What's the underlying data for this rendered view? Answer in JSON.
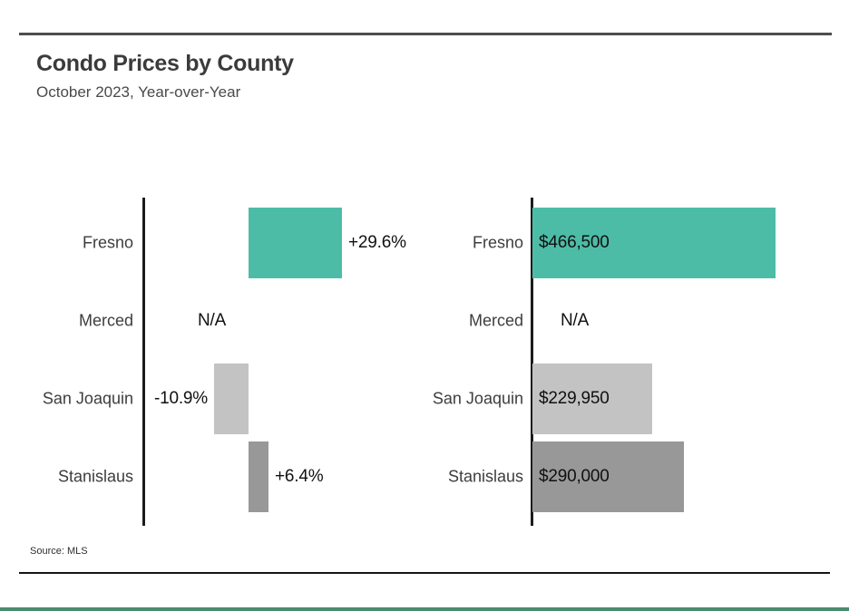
{
  "header": {
    "title": "Condo Prices by County",
    "subtitle": "October 2023, Year-over-Year"
  },
  "footer": {
    "source": "Source: MLS"
  },
  "colors": {
    "teal": "#4DBCA7",
    "light_gray": "#C3C3C3",
    "mid_gray": "#989898",
    "top_rule": "#4D4D4D",
    "bottom_rule": "#141414",
    "footer_band": "#4A8C6F"
  },
  "chart_data": [
    {
      "type": "bar",
      "orientation": "horizontal",
      "series_name": "Year-over-Year change (%)",
      "categories": [
        "Fresno",
        "Merced",
        "San Joaquin",
        "Stanislaus"
      ],
      "values": [
        29.6,
        null,
        -10.9,
        6.4
      ],
      "value_labels": [
        "+29.6%",
        "N/A",
        "-10.9%",
        "+6.4%"
      ],
      "bar_colors": [
        "#4DBCA7",
        null,
        "#C3C3C3",
        "#989898"
      ],
      "baseline": 0,
      "value_label_position": "outside",
      "grid": false,
      "legend": false
    },
    {
      "type": "bar",
      "orientation": "horizontal",
      "series_name": "Condo price ($)",
      "categories": [
        "Fresno",
        "Merced",
        "San Joaquin",
        "Stanislaus"
      ],
      "values": [
        466500,
        null,
        229950,
        290000
      ],
      "value_labels": [
        "$466,500",
        "N/A",
        "$229,950",
        "$290,000"
      ],
      "bar_colors": [
        "#4DBCA7",
        null,
        "#C3C3C3",
        "#989898"
      ],
      "baseline": 0,
      "value_label_position": "inside",
      "grid": false,
      "legend": false
    }
  ]
}
